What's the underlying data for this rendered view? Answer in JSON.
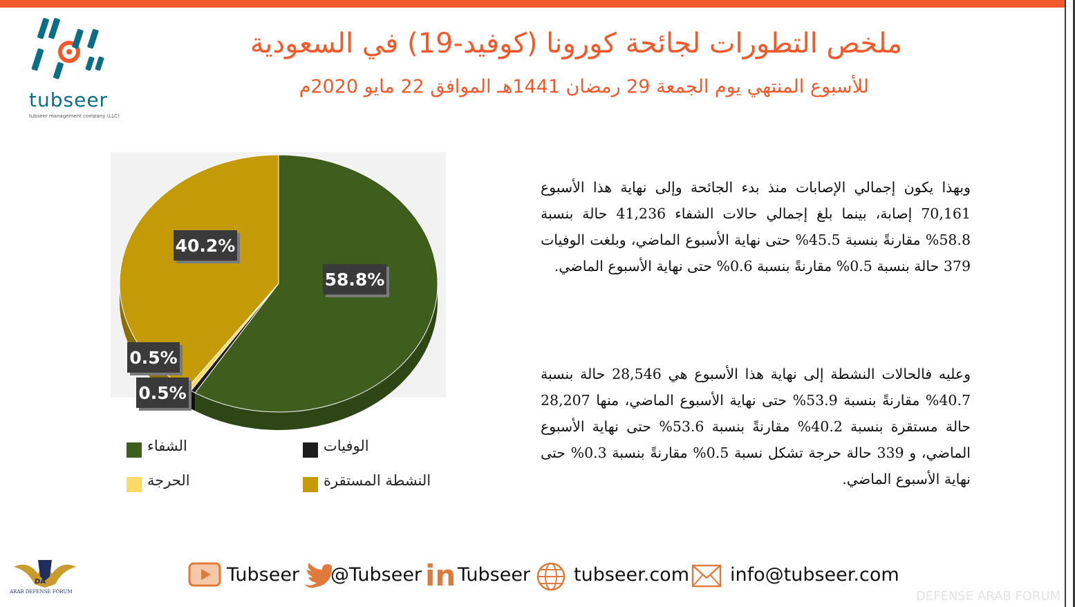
{
  "header": {
    "title": "ملخص التطورات لجائحة كورونا (كوفيد-19) في السعودية",
    "subtitle": "للأسبوع المنتهي يوم الجمعة 29 رمضان 1441هـ الموافق 22 مايو 2020م"
  },
  "logo": {
    "wordmark": "tubseer",
    "tagline": "tubseer management company (LLC)"
  },
  "paragraphs": {
    "p1": "وبهذا يكون إجمالي الإصابات منذ بدء الجائحة وإلى نهاية هذا الأسبوع 70,161 إصابة، بينما بلغ إجمالي حالات الشفاء 41,236 حالة بنسبة 58.8% مقارنةً بنسبة 45.5% حتى نهاية الأسبوع الماضي، وبلغت الوفيات 379 حالة بنسبة 0.5% مقارنةً بنسبة 0.6% حتى نهاية الأسبوع الماضي.",
    "p2": "وعليه فالحالات النشطة إلى نهاية هذا الأسبوع هي 28,546 حالة بنسبة 40.7% مقارنةً بنسبة 53.9% حتى نهاية الأسبوع الماضي، منها 28,207 حالة مستقرة بنسبة 40.2% مقارنةً بنسبة 53.6% حتى نهاية الأسبوع الماضي، و 339 حالة حرجة تشكل نسبة 0.5% مقارنةً بنسبة 0.3% حتى نهاية الأسبوع الماضي."
  },
  "chart_data": {
    "type": "pie",
    "title": "",
    "slices": [
      {
        "name": "الشفاء",
        "value": 58.8,
        "label": "58.8%",
        "color": "#3f5e1e",
        "side": "#2e4515"
      },
      {
        "name": "الوفيات",
        "value": 0.5,
        "label": "0.5%",
        "color": "#1c1c1c",
        "side": "#0e0e0e"
      },
      {
        "name": "الحرجة",
        "value": 0.5,
        "label": "0.5%",
        "color": "#ffd966",
        "side": "#c9a83d"
      },
      {
        "name": "النشطة المستقرة",
        "value": 40.2,
        "label": "40.2%",
        "color": "#c49a06",
        "side": "#8c6d02"
      }
    ],
    "legend_position": "bottom"
  },
  "footer": {
    "youtube": "Tubseer",
    "twitter": "@Tubseer",
    "linkedin_glyph": "in",
    "linkedin": "Tubseer",
    "website": "tubseer.com",
    "email": "info@tubseer.com"
  },
  "watermark": {
    "badge_text": "ARAB DEFENSE FORUM",
    "badge_letters": "DA",
    "corner_text": "DEFENSE ARAB FORUM"
  },
  "colors": {
    "accent": "#f0592a",
    "brand_teal": "#0c6e86"
  }
}
